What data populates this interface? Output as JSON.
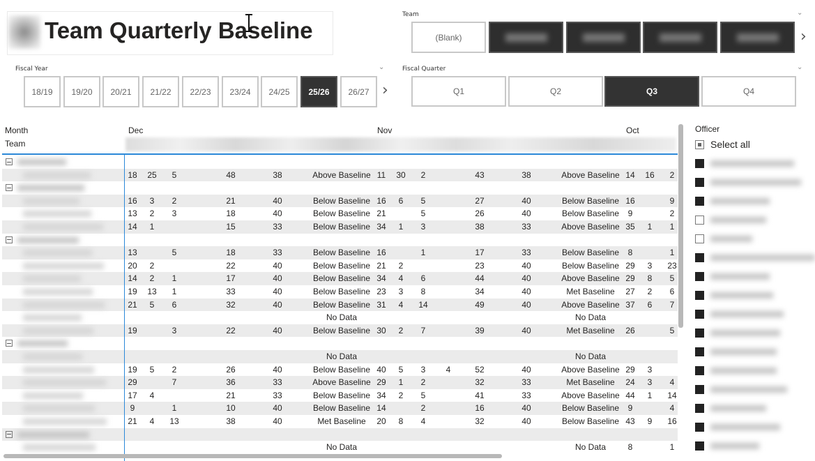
{
  "title": "Team Quarterly Baseline",
  "team_slicer": {
    "label": "Team",
    "items": [
      "(Blank)",
      "",
      "",
      "",
      ""
    ],
    "selected": []
  },
  "fiscal_year": {
    "label": "Fiscal Year",
    "items": [
      "18/19",
      "19/20",
      "20/21",
      "21/22",
      "22/23",
      "23/24",
      "24/25",
      "25/26",
      "26/27"
    ],
    "selected": "25/26"
  },
  "fiscal_quarter": {
    "label": "Fiscal Quarter",
    "items": [
      "Q1",
      "Q2",
      "Q3",
      "Q4"
    ],
    "selected": "Q3"
  },
  "matrix": {
    "row_header_1": "Month",
    "row_header_2": "Team",
    "months": [
      "Dec",
      "Nov",
      "Oct"
    ],
    "rows": [
      {
        "type": "group"
      },
      {
        "type": "data",
        "cells": [
          [
            "18",
            "25",
            "5",
            "",
            "48",
            "38",
            "Above Baseline"
          ],
          [
            "11",
            "30",
            "2",
            "",
            "43",
            "38",
            "Above Baseline"
          ],
          [
            "14",
            "16",
            "2"
          ]
        ]
      },
      {
        "type": "group"
      },
      {
        "type": "data",
        "cells": [
          [
            "16",
            "3",
            "2",
            "",
            "21",
            "40",
            "Below Baseline"
          ],
          [
            "16",
            "6",
            "5",
            "",
            "27",
            "40",
            "Below Baseline"
          ],
          [
            "16",
            "",
            "9"
          ]
        ]
      },
      {
        "type": "data",
        "cells": [
          [
            "13",
            "2",
            "3",
            "",
            "18",
            "40",
            "Below Baseline"
          ],
          [
            "21",
            "",
            "5",
            "",
            "26",
            "40",
            "Below Baseline"
          ],
          [
            "9",
            "",
            "2"
          ]
        ]
      },
      {
        "type": "data",
        "cells": [
          [
            "14",
            "1",
            "",
            "",
            "15",
            "33",
            "Below Baseline"
          ],
          [
            "34",
            "1",
            "3",
            "",
            "38",
            "33",
            "Above Baseline"
          ],
          [
            "35",
            "1",
            "1"
          ]
        ]
      },
      {
        "type": "group"
      },
      {
        "type": "data",
        "cells": [
          [
            "13",
            "",
            "5",
            "",
            "18",
            "33",
            "Below Baseline"
          ],
          [
            "16",
            "",
            "1",
            "",
            "17",
            "33",
            "Below Baseline"
          ],
          [
            "8",
            "",
            "1"
          ]
        ]
      },
      {
        "type": "data",
        "cells": [
          [
            "20",
            "2",
            "",
            "",
            "22",
            "40",
            "Below Baseline"
          ],
          [
            "21",
            "2",
            "",
            "",
            "23",
            "40",
            "Below Baseline"
          ],
          [
            "29",
            "3",
            "23"
          ]
        ]
      },
      {
        "type": "data",
        "cells": [
          [
            "14",
            "2",
            "1",
            "",
            "17",
            "40",
            "Below Baseline"
          ],
          [
            "34",
            "4",
            "6",
            "",
            "44",
            "40",
            "Above Baseline"
          ],
          [
            "29",
            "8",
            "5"
          ]
        ]
      },
      {
        "type": "data",
        "cells": [
          [
            "19",
            "13",
            "1",
            "",
            "33",
            "40",
            "Below Baseline"
          ],
          [
            "23",
            "3",
            "8",
            "",
            "34",
            "40",
            "Met Baseline"
          ],
          [
            "27",
            "2",
            "6"
          ]
        ]
      },
      {
        "type": "data",
        "cells": [
          [
            "21",
            "5",
            "6",
            "",
            "32",
            "40",
            "Below Baseline"
          ],
          [
            "31",
            "4",
            "14",
            "",
            "49",
            "40",
            "Above Baseline"
          ],
          [
            "37",
            "6",
            "7"
          ]
        ]
      },
      {
        "type": "data",
        "cells": [
          [
            "",
            "",
            "",
            "",
            "",
            "",
            "No Data"
          ],
          [
            "",
            "",
            "",
            "",
            "",
            "",
            "No Data"
          ],
          [
            "",
            "",
            ""
          ]
        ]
      },
      {
        "type": "data",
        "cells": [
          [
            "19",
            "",
            "3",
            "",
            "22",
            "40",
            "Below Baseline"
          ],
          [
            "30",
            "2",
            "7",
            "",
            "39",
            "40",
            "Met Baseline"
          ],
          [
            "26",
            "",
            "5"
          ]
        ]
      },
      {
        "type": "group"
      },
      {
        "type": "data",
        "cells": [
          [
            "",
            "",
            "",
            "",
            "",
            "",
            "No Data"
          ],
          [
            "",
            "",
            "",
            "",
            "",
            "",
            "No Data"
          ],
          [
            "",
            "",
            ""
          ]
        ]
      },
      {
        "type": "data",
        "cells": [
          [
            "19",
            "5",
            "2",
            "",
            "26",
            "40",
            "Below Baseline"
          ],
          [
            "40",
            "5",
            "3",
            "4",
            "52",
            "40",
            "Above Baseline"
          ],
          [
            "29",
            "3",
            ""
          ]
        ]
      },
      {
        "type": "data",
        "cells": [
          [
            "29",
            "",
            "7",
            "",
            "36",
            "33",
            "Above Baseline"
          ],
          [
            "29",
            "1",
            "2",
            "",
            "32",
            "33",
            "Met Baseline"
          ],
          [
            "24",
            "3",
            "4"
          ]
        ]
      },
      {
        "type": "data",
        "cells": [
          [
            "17",
            "4",
            "",
            "",
            "21",
            "33",
            "Below Baseline"
          ],
          [
            "34",
            "2",
            "5",
            "",
            "41",
            "33",
            "Above Baseline"
          ],
          [
            "44",
            "1",
            "14"
          ]
        ]
      },
      {
        "type": "data",
        "cells": [
          [
            "9",
            "",
            "1",
            "",
            "10",
            "40",
            "Below Baseline"
          ],
          [
            "14",
            "",
            "2",
            "",
            "16",
            "40",
            "Below Baseline"
          ],
          [
            "9",
            "",
            "4"
          ]
        ]
      },
      {
        "type": "data",
        "cells": [
          [
            "21",
            "4",
            "13",
            "",
            "38",
            "40",
            "Met Baseline"
          ],
          [
            "20",
            "8",
            "4",
            "",
            "32",
            "40",
            "Below Baseline"
          ],
          [
            "43",
            "9",
            "16"
          ]
        ]
      },
      {
        "type": "group"
      },
      {
        "type": "data",
        "cells": [
          [
            "",
            "",
            "",
            "",
            "",
            "",
            "No Data"
          ],
          [
            "",
            "",
            "",
            "",
            "",
            "",
            "No Data"
          ],
          [
            "8",
            "",
            "1"
          ]
        ]
      }
    ]
  },
  "officer_slicer": {
    "label": "Officer",
    "select_all": "Select all",
    "checked": [
      true,
      true,
      true,
      false,
      false,
      true,
      true,
      true,
      true,
      true,
      true,
      true,
      true,
      true,
      true,
      true
    ]
  },
  "colors": {
    "accent_line": "#2b88d8",
    "selected_button": "#333333",
    "row_alt": "#ebebeb"
  }
}
